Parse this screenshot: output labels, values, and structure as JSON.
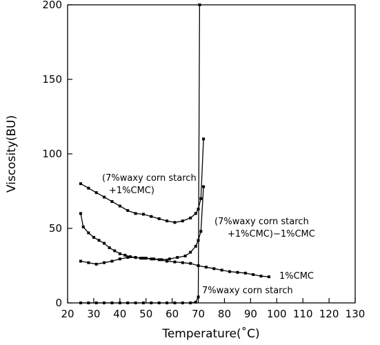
{
  "chart_data": {
    "type": "line",
    "xlabel": "Temperature(˚C)",
    "ylabel": "Viscosity(BU)",
    "xlim": [
      20,
      130
    ],
    "ylim": [
      0,
      200
    ],
    "xticks": [
      20,
      30,
      40,
      50,
      60,
      70,
      80,
      90,
      100,
      110,
      120,
      130
    ],
    "yticks": [
      0,
      50,
      100,
      150,
      200
    ],
    "grid": false,
    "legend": "none",
    "series": [
      {
        "name": "(7%waxy corn starch +1%CMC)",
        "x": [
          25,
          28,
          31,
          34,
          37,
          40,
          43,
          46,
          49,
          52,
          55,
          58,
          61,
          64,
          67,
          69,
          70,
          71,
          72
        ],
        "y": [
          80,
          77,
          74,
          71,
          68,
          65,
          62,
          60,
          59.5,
          58,
          56.5,
          55,
          54,
          55,
          57,
          60,
          63,
          70,
          110
        ]
      },
      {
        "name": "(7%waxy corn starch +1%CMC)−1%CMC",
        "x": [
          25,
          26,
          28,
          30,
          32,
          34,
          36,
          38,
          40,
          42,
          44,
          46,
          48,
          50,
          53,
          56,
          59,
          62,
          65,
          67,
          69,
          70,
          71,
          72
        ],
        "y": [
          60,
          51,
          47,
          44,
          42,
          40,
          37,
          35,
          33,
          32,
          31,
          30.5,
          30,
          30,
          29.5,
          29,
          29.5,
          30.5,
          31.5,
          34,
          38,
          42,
          48,
          78
        ]
      },
      {
        "name": "1%CMC",
        "x": [
          25,
          28,
          31,
          34,
          37,
          40,
          43,
          46,
          49,
          52,
          55,
          58,
          61,
          64,
          67,
          70,
          73,
          76,
          79,
          82,
          85,
          88,
          91,
          94,
          97
        ],
        "y": [
          28,
          27,
          26,
          27,
          28,
          29.5,
          30.5,
          30.5,
          30,
          29.5,
          29,
          28,
          27.5,
          27,
          26.5,
          25,
          24,
          23,
          22,
          21,
          20.5,
          20,
          19,
          18,
          17.5
        ]
      },
      {
        "name": "7%waxy corn starch",
        "x": [
          25,
          28,
          31,
          34,
          37,
          40,
          43,
          46,
          49,
          52,
          55,
          58,
          61,
          64,
          67,
          69,
          70,
          70.5
        ],
        "y": [
          0,
          0,
          0,
          0,
          0,
          0,
          0,
          0,
          0,
          0,
          0,
          0,
          0,
          0,
          0,
          0.5,
          4,
          200
        ]
      }
    ],
    "annotations": [
      {
        "lines": [
          "(7%waxy corn starch",
          "+1%CMC)"
        ]
      },
      {
        "lines": [
          "(7%waxy corn starch",
          "+1%CMC)−1%CMC"
        ]
      },
      {
        "lines": [
          "1%CMC"
        ]
      },
      {
        "lines": [
          "7%waxy corn starch"
        ]
      }
    ]
  }
}
